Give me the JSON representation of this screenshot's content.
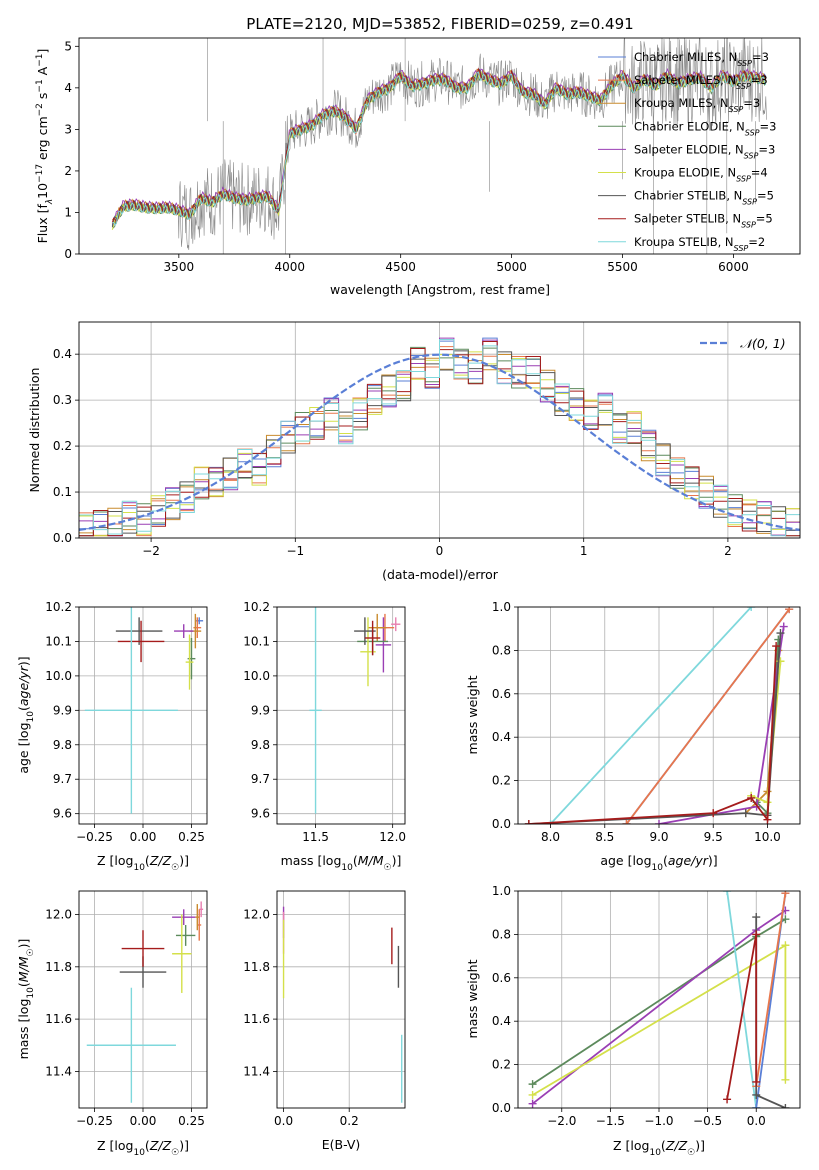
{
  "chart_data": [
    {
      "type": "line",
      "title": "PLATE=2120, MJD=53852, FIBERID=0259, z=0.491",
      "xlabel": "wavelength [Angstrom, rest frame]",
      "ylabel_parts": [
        "Flux [f",
        "λ",
        "10",
        "−17",
        " erg cm",
        "−2",
        " s",
        "−1",
        " A",
        "−1",
        "]"
      ],
      "xlim": [
        3050,
        6300
      ],
      "ylim": [
        0,
        5.2
      ],
      "xticks": [
        3500,
        4000,
        4500,
        5000,
        5500,
        6000
      ],
      "xtick_labels": [
        "3500",
        "4000",
        "4500",
        "5000",
        "5500",
        "6000"
      ],
      "yticks": [
        0,
        1,
        2,
        3,
        4,
        5
      ],
      "ytick_labels": [
        "0",
        "1",
        "2",
        "3",
        "4",
        "5"
      ],
      "grid": false,
      "legend_position": "top-right",
      "spectrum_x": [
        3200,
        3250,
        3300,
        3350,
        3400,
        3450,
        3500,
        3550,
        3600,
        3650,
        3700,
        3750,
        3800,
        3850,
        3900,
        3950,
        4000,
        4050,
        4100,
        4150,
        4200,
        4250,
        4300,
        4350,
        4400,
        4450,
        4500,
        4550,
        4600,
        4650,
        4700,
        4750,
        4800,
        4850,
        4900,
        4950,
        5000,
        5050,
        5100,
        5150,
        5200,
        5250,
        5300,
        5350,
        5400,
        5450,
        5500,
        5550,
        5600,
        5650,
        5700,
        5750,
        5800,
        5850,
        5900,
        5950,
        6000,
        6050,
        6100,
        6150
      ],
      "spectrum_y": [
        0.7,
        1.15,
        1.18,
        1.12,
        1.1,
        1.12,
        1.05,
        0.95,
        1.35,
        1.25,
        1.45,
        1.35,
        1.3,
        1.35,
        1.4,
        1.05,
        2.9,
        3.0,
        3.1,
        3.35,
        3.45,
        3.3,
        3.0,
        3.7,
        3.9,
        4.0,
        4.3,
        4.05,
        4.1,
        4.2,
        4.2,
        4.0,
        4.0,
        4.35,
        4.2,
        4.1,
        4.3,
        3.9,
        3.85,
        3.6,
        4.0,
        3.85,
        3.9,
        3.8,
        3.7,
        4.05,
        4.3,
        4.0,
        4.2,
        4.05,
        4.3,
        4.1,
        4.2,
        4.25,
        4.0,
        4.3,
        4.15,
        4.3,
        4.25,
        4.2
      ],
      "series": [
        {
          "label": "Chabrier MILES, N_SSP=3",
          "name_text": "Chabrier MILES, N",
          "sub": "SSP",
          "suffix": "=3",
          "color": "#5a7fd6",
          "offset": 0.02
        },
        {
          "label": "Salpeter MILES, N_SSP=3",
          "name_text": "Salpeter MILES, N",
          "sub": "SSP",
          "suffix": "=3",
          "color": "#e8774c",
          "offset": -0.03
        },
        {
          "label": "Kroupa MILES, N_SSP=3",
          "name_text": "Kroupa MILES, N",
          "sub": "SSP",
          "suffix": "=3",
          "color": "#c98b2e",
          "offset": 0.04
        },
        {
          "label": "Chabrier ELODIE, N_SSP=3",
          "name_text": "Chabrier ELODIE, N",
          "sub": "SSP",
          "suffix": "=3",
          "color": "#5c8a5c",
          "offset": -0.05
        },
        {
          "label": "Salpeter ELODIE, N_SSP=3",
          "name_text": "Salpeter ELODIE, N",
          "sub": "SSP",
          "suffix": "=3",
          "color": "#9a3fb4",
          "offset": 0.06
        },
        {
          "label": "Kroupa ELODIE, N_SSP=4",
          "name_text": "Kroupa ELODIE, N",
          "sub": "SSP",
          "suffix": "=4",
          "color": "#d4e04a",
          "offset": -0.02
        },
        {
          "label": "Chabrier STELIB, N_SSP=5",
          "name_text": "Chabrier STELIB, N",
          "sub": "SSP",
          "suffix": "=5",
          "color": "#555555",
          "offset": 0.0
        },
        {
          "label": "Salpeter STELIB, N_SSP=5",
          "name_text": "Salpeter STELIB, N",
          "sub": "SSP",
          "suffix": "=5",
          "color": "#a51c1c",
          "offset": 0.01
        },
        {
          "label": "Kroupa STELIB, N_SSP=2",
          "name_text": "Kroupa STELIB, N",
          "sub": "SSP",
          "suffix": "=2",
          "color": "#7fd8dc",
          "offset": -0.04
        }
      ]
    },
    {
      "type": "histogram",
      "xlabel": "(data-model)/error",
      "ylabel": "Normed distribution",
      "xlim": [
        -2.5,
        2.5
      ],
      "ylim": [
        0,
        0.47
      ],
      "xticks": [
        -2,
        -1,
        0,
        1,
        2
      ],
      "xtick_labels": [
        "−2",
        "−1",
        "0",
        "1",
        "2"
      ],
      "yticks": [
        0,
        0.1,
        0.2,
        0.3,
        0.4
      ],
      "ytick_labels": [
        "0.0",
        "0.1",
        "0.2",
        "0.3",
        "0.4"
      ],
      "grid": true,
      "bin_edges": [
        -2.5,
        -2.4,
        -2.3,
        -2.2,
        -2.1,
        -2.0,
        -1.9,
        -1.8,
        -1.7,
        -1.6,
        -1.5,
        -1.4,
        -1.3,
        -1.2,
        -1.1,
        -1.0,
        -0.9,
        -0.8,
        -0.7,
        -0.6,
        -0.5,
        -0.4,
        -0.3,
        -0.2,
        -0.1,
        0.0,
        0.1,
        0.2,
        0.3,
        0.4,
        0.5,
        0.6,
        0.7,
        0.8,
        0.9,
        1.0,
        1.1,
        1.2,
        1.3,
        1.4,
        1.5,
        1.6,
        1.7,
        1.8,
        1.9,
        2.0,
        2.1,
        2.2,
        2.3,
        2.4,
        2.5
      ],
      "reference_hist": [
        0.02,
        0.025,
        0.03,
        0.045,
        0.04,
        0.06,
        0.075,
        0.09,
        0.12,
        0.12,
        0.14,
        0.16,
        0.15,
        0.19,
        0.22,
        0.24,
        0.25,
        0.27,
        0.24,
        0.27,
        0.3,
        0.32,
        0.33,
        0.38,
        0.36,
        0.4,
        0.38,
        0.37,
        0.4,
        0.37,
        0.36,
        0.36,
        0.33,
        0.3,
        0.29,
        0.27,
        0.28,
        0.24,
        0.24,
        0.2,
        0.17,
        0.14,
        0.12,
        0.1,
        0.08,
        0.06,
        0.05,
        0.045,
        0.035,
        0.03
      ],
      "normal_label": "𝒩(0, 1)",
      "normal_color": "#5a7fd6",
      "legend_position": "top-right",
      "series_colors": [
        "#5a7fd6",
        "#e8774c",
        "#c98b2e",
        "#5c8a5c",
        "#9a3fb4",
        "#d4e04a",
        "#555555",
        "#a51c1c",
        "#7fd8dc"
      ]
    },
    {
      "type": "errorbar",
      "xlabel": "Z [log10(Z/Z☉)]",
      "xlabel_parts": [
        "Z [log",
        "10",
        "(",
        "Z/Z",
        "☉",
        ")]"
      ],
      "ylabel": "age [log10(age/yr)]",
      "ylabel_parts": [
        "age  [log",
        "10",
        "(",
        "age/yr",
        ")]"
      ],
      "xlim": [
        -0.33,
        0.33
      ],
      "ylim": [
        9.57,
        10.2
      ],
      "xticks": [
        -0.25,
        0.0,
        0.25
      ],
      "xtick_labels": [
        "−0.25",
        "0.00",
        "0.25"
      ],
      "yticks": [
        9.6,
        9.7,
        9.8,
        9.9,
        10.0,
        10.1,
        10.2
      ],
      "ytick_labels": [
        "9.6",
        "9.7",
        "9.8",
        "9.9",
        "10.0",
        "10.1",
        "10.2"
      ],
      "grid": true,
      "points": [
        {
          "x": 0.29,
          "y": 10.16,
          "xerr": 0.02,
          "yerr": 0.01,
          "color": "#5a7fd6"
        },
        {
          "x": 0.28,
          "y": 10.14,
          "xerr": 0.02,
          "yerr": 0.03,
          "color": "#e8774c"
        },
        {
          "x": 0.27,
          "y": 10.13,
          "xerr": 0.03,
          "yerr": 0.05,
          "color": "#c98b2e"
        },
        {
          "x": 0.25,
          "y": 10.05,
          "xerr": 0.02,
          "yerr": 0.06,
          "color": "#5c8a5c"
        },
        {
          "x": 0.21,
          "y": 10.13,
          "xerr": 0.05,
          "yerr": 0.02,
          "color": "#9a3fb4"
        },
        {
          "x": 0.24,
          "y": 10.04,
          "xerr": 0.02,
          "yerr": 0.08,
          "color": "#d4e04a"
        },
        {
          "x": -0.02,
          "y": 10.13,
          "xerr": 0.12,
          "yerr": 0.04,
          "color": "#555555"
        },
        {
          "x": -0.01,
          "y": 10.1,
          "xerr": 0.12,
          "yerr": 0.06,
          "color": "#a51c1c"
        },
        {
          "x": -0.06,
          "y": 9.9,
          "xerr": 0.24,
          "yerr": 0.3,
          "color": "#7fd8dc"
        }
      ]
    },
    {
      "type": "errorbar",
      "xlabel": "mass [log10(M/M☉)]",
      "xlabel_parts": [
        "mass [log",
        "10",
        "(",
        "M/M",
        "☉",
        ")]"
      ],
      "xlim": [
        11.25,
        12.08
      ],
      "ylim": [
        9.57,
        10.2
      ],
      "xticks": [
        11.5,
        12.0
      ],
      "xtick_labels": [
        "11.5",
        "12.0"
      ],
      "yticks": [
        9.6,
        9.7,
        9.8,
        9.9,
        10.0,
        10.1,
        10.2
      ],
      "ytick_labels": [
        "9.6",
        "9.7",
        "9.8",
        "9.9",
        "10.0",
        "10.1",
        "10.2"
      ],
      "grid": true,
      "points": [
        {
          "x": 12.02,
          "y": 10.15,
          "xerr": 0.03,
          "yerr": 0.02,
          "color": "#e87fb0"
        },
        {
          "x": 11.95,
          "y": 10.14,
          "xerr": 0.06,
          "yerr": 0.04,
          "color": "#e8774c"
        },
        {
          "x": 11.94,
          "y": 10.09,
          "xerr": 0.05,
          "yerr": 0.08,
          "color": "#9a3fb4"
        },
        {
          "x": 11.9,
          "y": 10.14,
          "xerr": 0.06,
          "yerr": 0.04,
          "color": "#c98b2e"
        },
        {
          "x": 11.87,
          "y": 10.1,
          "xerr": 0.1,
          "yerr": 0.04,
          "color": "#5c8a5c"
        },
        {
          "x": 11.84,
          "y": 10.07,
          "xerr": 0.05,
          "yerr": 0.1,
          "color": "#d4e04a"
        },
        {
          "x": 11.82,
          "y": 10.13,
          "xerr": 0.07,
          "yerr": 0.04,
          "color": "#555555"
        },
        {
          "x": 11.87,
          "y": 10.11,
          "xerr": 0.05,
          "yerr": 0.05,
          "color": "#a51c1c"
        },
        {
          "x": 11.5,
          "y": 9.9,
          "xerr": 0.04,
          "yerr": 0.3,
          "color": "#7fd8dc"
        }
      ]
    },
    {
      "type": "line",
      "xlabel": "age [log10(age/yr)]",
      "xlabel_parts": [
        "age  [log",
        "10",
        "(",
        "age/yr",
        ")]"
      ],
      "ylabel": "mass weight",
      "xlim": [
        7.7,
        10.3
      ],
      "ylim": [
        0,
        1
      ],
      "xticks": [
        8.0,
        8.5,
        9.0,
        9.5,
        10.0
      ],
      "xtick_labels": [
        "8.0",
        "8.5",
        "9.0",
        "9.5",
        "10.0"
      ],
      "yticks": [
        0,
        0.2,
        0.4,
        0.6,
        0.8,
        1.0
      ],
      "ytick_labels": [
        "0.0",
        "0.2",
        "0.4",
        "0.6",
        "0.8",
        "1.0"
      ],
      "grid": true,
      "series": [
        {
          "color": "#7fd8dc",
          "x": [
            8.0,
            9.85
          ],
          "y": [
            0.0,
            1.0
          ]
        },
        {
          "color": "#5a7fd6",
          "x": [
            8.7,
            10.2
          ],
          "y": [
            0.0,
            0.99
          ]
        },
        {
          "color": "#e8774c",
          "x": [
            8.7,
            10.2
          ],
          "y": [
            0.0,
            0.99
          ]
        },
        {
          "color": "#c98b2e",
          "x": [
            9.8,
            10.0,
            10.1
          ],
          "y": [
            0.05,
            0.15,
            0.8
          ]
        },
        {
          "color": "#5c8a5c",
          "x": [
            9.9,
            10.0,
            10.1
          ],
          "y": [
            0.1,
            0.05,
            0.85
          ]
        },
        {
          "color": "#9a3fb4",
          "x": [
            9.0,
            9.9,
            10.15
          ],
          "y": [
            0.0,
            0.08,
            0.91
          ]
        },
        {
          "color": "#d4e04a",
          "x": [
            9.85,
            10.0,
            10.12
          ],
          "y": [
            0.13,
            0.1,
            0.75
          ]
        },
        {
          "color": "#555555",
          "x": [
            7.8,
            9.8,
            10.0,
            10.12
          ],
          "y": [
            0.0,
            0.05,
            0.04,
            0.88
          ]
        },
        {
          "color": "#a51c1c",
          "x": [
            7.8,
            9.5,
            9.85,
            10.0,
            10.08
          ],
          "y": [
            0.0,
            0.05,
            0.12,
            0.02,
            0.82
          ]
        }
      ]
    },
    {
      "type": "errorbar",
      "xlabel": "Z [log10(Z/Z☉)]",
      "xlabel_parts": [
        "Z [log",
        "10",
        "(",
        "Z/Z",
        "☉",
        ")]"
      ],
      "ylabel": "mass [log10(M/M☉)]",
      "ylabel_parts": [
        "mass [log",
        "10",
        "(",
        "M/M",
        "☉",
        ")]"
      ],
      "xlim": [
        -0.33,
        0.33
      ],
      "ylim": [
        11.26,
        12.09
      ],
      "xticks": [
        -0.25,
        0.0,
        0.25
      ],
      "xtick_labels": [
        "−0.25",
        "0.00",
        "0.25"
      ],
      "yticks": [
        11.4,
        11.6,
        11.8,
        12.0
      ],
      "ytick_labels": [
        "11.4",
        "11.6",
        "11.8",
        "12.0"
      ],
      "grid": true,
      "points": [
        {
          "x": 0.3,
          "y": 12.02,
          "xerr": 0.01,
          "yerr": 0.03,
          "color": "#e87fb0"
        },
        {
          "x": 0.29,
          "y": 11.96,
          "xerr": 0.01,
          "yerr": 0.06,
          "color": "#e8774c"
        },
        {
          "x": 0.28,
          "y": 11.99,
          "xerr": 0.01,
          "yerr": 0.05,
          "color": "#c98b2e"
        },
        {
          "x": 0.21,
          "y": 11.99,
          "xerr": 0.06,
          "yerr": 0.03,
          "color": "#9a3fb4"
        },
        {
          "x": 0.22,
          "y": 11.92,
          "xerr": 0.05,
          "yerr": 0.04,
          "color": "#5c8a5c"
        },
        {
          "x": 0.2,
          "y": 11.85,
          "xerr": 0.05,
          "yerr": 0.15,
          "color": "#d4e04a"
        },
        {
          "x": 0.0,
          "y": 11.78,
          "xerr": 0.12,
          "yerr": 0.06,
          "color": "#555555"
        },
        {
          "x": 0.0,
          "y": 11.87,
          "xerr": 0.11,
          "yerr": 0.07,
          "color": "#a51c1c"
        },
        {
          "x": -0.06,
          "y": 11.5,
          "xerr": 0.23,
          "yerr": 0.22,
          "color": "#7fd8dc"
        }
      ]
    },
    {
      "type": "errorbar",
      "xlabel": "E(B-V)",
      "xlim": [
        -0.02,
        0.37
      ],
      "ylim": [
        11.26,
        12.09
      ],
      "xticks": [
        0.0,
        0.2
      ],
      "xtick_labels": [
        "0.0",
        "0.2"
      ],
      "yticks": [
        11.4,
        11.6,
        11.8,
        12.0
      ],
      "ytick_labels": [
        "11.4",
        "11.6",
        "11.8",
        "12.0"
      ],
      "grid": true,
      "points": [
        {
          "x": 0.0,
          "y": 11.97,
          "xerr": 0.0,
          "yerr": 0.06,
          "color": "#9a3fb4"
        },
        {
          "x": 0.0,
          "y": 11.93,
          "xerr": 0.0,
          "yerr": 0.08,
          "color": "#e87fb0"
        },
        {
          "x": 0.0,
          "y": 11.83,
          "xerr": 0.0,
          "yerr": 0.15,
          "color": "#d4e04a"
        },
        {
          "x": 0.33,
          "y": 11.88,
          "xerr": 0.0,
          "yerr": 0.07,
          "color": "#a51c1c"
        },
        {
          "x": 0.35,
          "y": 11.8,
          "xerr": 0.0,
          "yerr": 0.08,
          "color": "#555555"
        },
        {
          "x": 0.36,
          "y": 11.41,
          "xerr": 0.0,
          "yerr": 0.13,
          "color": "#7fd8dc"
        }
      ]
    },
    {
      "type": "line",
      "xlabel": "Z [log10(Z/Z☉)]",
      "xlabel_parts": [
        "Z [log",
        "10",
        "(",
        "Z/Z",
        "☉",
        ")]"
      ],
      "ylabel": "mass weight",
      "xlim": [
        -2.45,
        0.45
      ],
      "ylim": [
        0,
        1
      ],
      "xticks": [
        -2.0,
        -1.5,
        -1.0,
        -0.5,
        0.0
      ],
      "xtick_labels": [
        "−2.0",
        "−1.5",
        "−1.0",
        "−0.5",
        "0.0"
      ],
      "yticks": [
        0,
        0.2,
        0.4,
        0.6,
        0.8,
        1.0
      ],
      "ytick_labels": [
        "0.0",
        "0.2",
        "0.4",
        "0.6",
        "0.8",
        "1.0"
      ],
      "grid": true,
      "series": [
        {
          "color": "#5c8a5c",
          "x": [
            -2.3,
            0.0,
            0.3
          ],
          "y": [
            0.11,
            0.79,
            0.87
          ]
        },
        {
          "color": "#9a3fb4",
          "x": [
            -2.3,
            0.0,
            0.3
          ],
          "y": [
            0.02,
            0.82,
            0.91
          ]
        },
        {
          "color": "#d4e04a",
          "x": [
            -2.3,
            0.3,
            0.3
          ],
          "y": [
            0.06,
            0.75,
            0.13
          ]
        },
        {
          "color": "#7fd8dc",
          "x": [
            -0.3,
            0.0
          ],
          "y": [
            1.0,
            0.0
          ]
        },
        {
          "color": "#5a7fd6",
          "x": [
            0.0,
            0.3
          ],
          "y": [
            0.0,
            0.99
          ]
        },
        {
          "color": "#e8774c",
          "x": [
            0.0,
            0.3
          ],
          "y": [
            0.1,
            0.99
          ]
        },
        {
          "color": "#555555",
          "x": [
            0.0,
            0.0,
            0.3
          ],
          "y": [
            0.88,
            0.06,
            0.0
          ]
        },
        {
          "color": "#a51c1c",
          "x": [
            -0.3,
            0.0,
            0.0
          ],
          "y": [
            0.04,
            0.8,
            0.12
          ]
        }
      ]
    }
  ]
}
